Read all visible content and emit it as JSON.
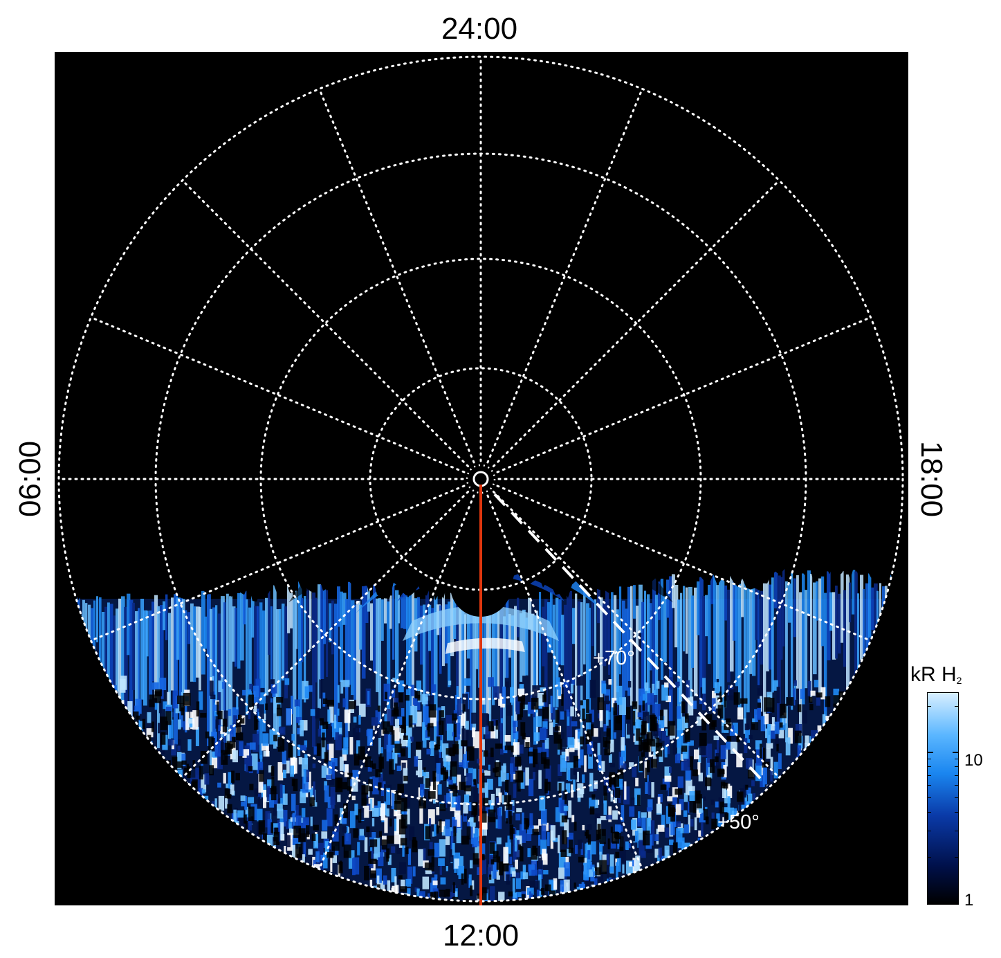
{
  "labels": {
    "top": "24:00",
    "bottom": "12:00",
    "left": "06:00",
    "right": "18:00"
  },
  "annotations": {
    "lat_inner": "+70°",
    "lat_outer": "+50°"
  },
  "colorbar": {
    "title": "kR H",
    "title_sub": "2",
    "scale": "log",
    "tick_labels": [
      "1",
      "10"
    ],
    "range": [
      1,
      25
    ]
  },
  "colors": {
    "background": "#000000",
    "grid": "#ffffff",
    "meridian": "#e0360e",
    "emission_low": "#00104a",
    "emission_mid": "#1a86f0",
    "emission_high": "#d8efff"
  },
  "grid": {
    "style": "dotted",
    "meridian_step_hours": 1.5,
    "latitude_step_deg": 10
  }
}
